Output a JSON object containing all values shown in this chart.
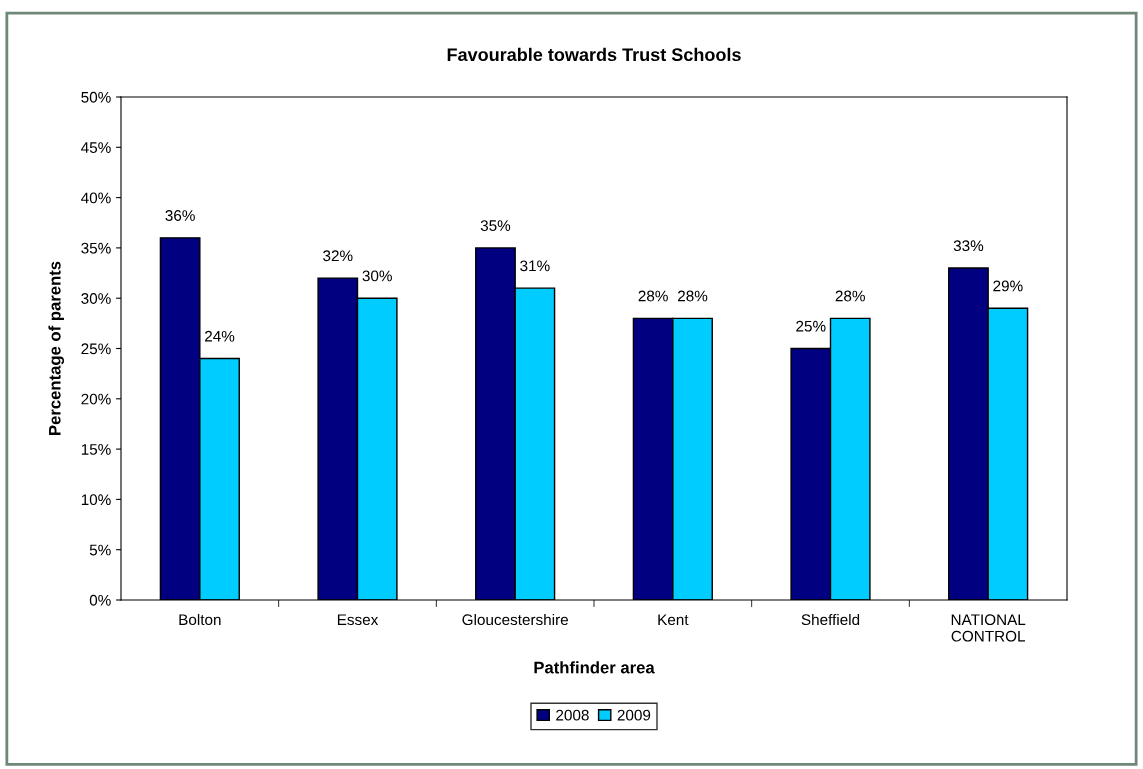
{
  "chart_data": {
    "type": "bar",
    "title": "Favourable towards Trust Schools",
    "xlabel": "Pathfinder area",
    "ylabel": "Percentage of parents",
    "categories": [
      "Bolton",
      "Essex",
      "Gloucestershire",
      "Kent",
      "Sheffield",
      "NATIONAL\nCONTROL"
    ],
    "series": [
      {
        "name": "2008",
        "color": "#000080",
        "values": [
          36,
          32,
          35,
          28,
          25,
          33
        ],
        "value_labels": [
          "36%",
          "32%",
          "35%",
          "28%",
          "25%",
          "33%"
        ]
      },
      {
        "name": "2009",
        "color": "#00ccff",
        "values": [
          24,
          30,
          31,
          28,
          28,
          29
        ],
        "value_labels": [
          "24%",
          "30%",
          "31%",
          "28%",
          "28%",
          "29%"
        ]
      }
    ],
    "ylim": [
      0,
      50
    ],
    "yticks": [
      {
        "value": 0,
        "label": "0%"
      },
      {
        "value": 5,
        "label": "5%"
      },
      {
        "value": 10,
        "label": "10%"
      },
      {
        "value": 15,
        "label": "15%"
      },
      {
        "value": 20,
        "label": "20%"
      },
      {
        "value": 25,
        "label": "25%"
      },
      {
        "value": 30,
        "label": "30%"
      },
      {
        "value": 35,
        "label": "35%"
      },
      {
        "value": 40,
        "label": "40%"
      },
      {
        "value": 45,
        "label": "45%"
      },
      {
        "value": 50,
        "label": "50%"
      }
    ],
    "grid": false,
    "legend": "bottom"
  }
}
